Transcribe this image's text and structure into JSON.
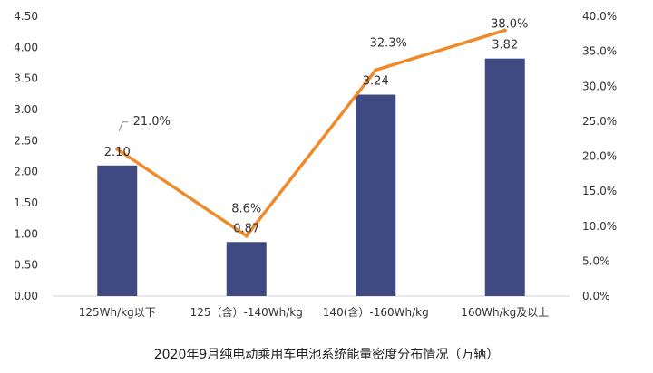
{
  "chart_data": {
    "type": "bar",
    "title": "2020年9月纯电动乘用车电池系统能量密度分布情况（万辆）",
    "categories": [
      "125Wh/kg以下",
      "125（含）-140Wh/kg",
      "140(含）-160Wh/kg",
      "160Wh/kg及以上"
    ],
    "series": [
      {
        "type": "bar",
        "axis": "left",
        "values": [
          2.1,
          0.87,
          3.24,
          3.82
        ],
        "labels": [
          "2.10",
          "0.87",
          "3.24",
          "3.82"
        ],
        "color": "#3f4a82"
      },
      {
        "type": "line",
        "axis": "right",
        "values": [
          21.0,
          8.6,
          32.3,
          38.0
        ],
        "labels": [
          "21.0%",
          "8.6%",
          "32.3%",
          "38.0%"
        ],
        "color": "#f0892a"
      }
    ],
    "y_left": {
      "min": 0,
      "max": 4.5,
      "ticks": [
        0,
        0.5,
        1.0,
        1.5,
        2.0,
        2.5,
        3.0,
        3.5,
        4.0,
        4.5
      ],
      "tick_labels": [
        "0.00",
        "0.50",
        "1.00",
        "1.50",
        "2.00",
        "2.50",
        "3.00",
        "3.50",
        "4.00",
        "4.50"
      ]
    },
    "y_right": {
      "min": 0,
      "max": 40,
      "ticks": [
        0,
        5,
        10,
        15,
        20,
        25,
        30,
        35,
        40
      ],
      "tick_labels": [
        "0.0%",
        "5.0%",
        "10.0%",
        "15.0%",
        "20.0%",
        "25.0%",
        "30.0%",
        "35.0%",
        "40.0%"
      ]
    },
    "grid": false,
    "legend": "none"
  }
}
